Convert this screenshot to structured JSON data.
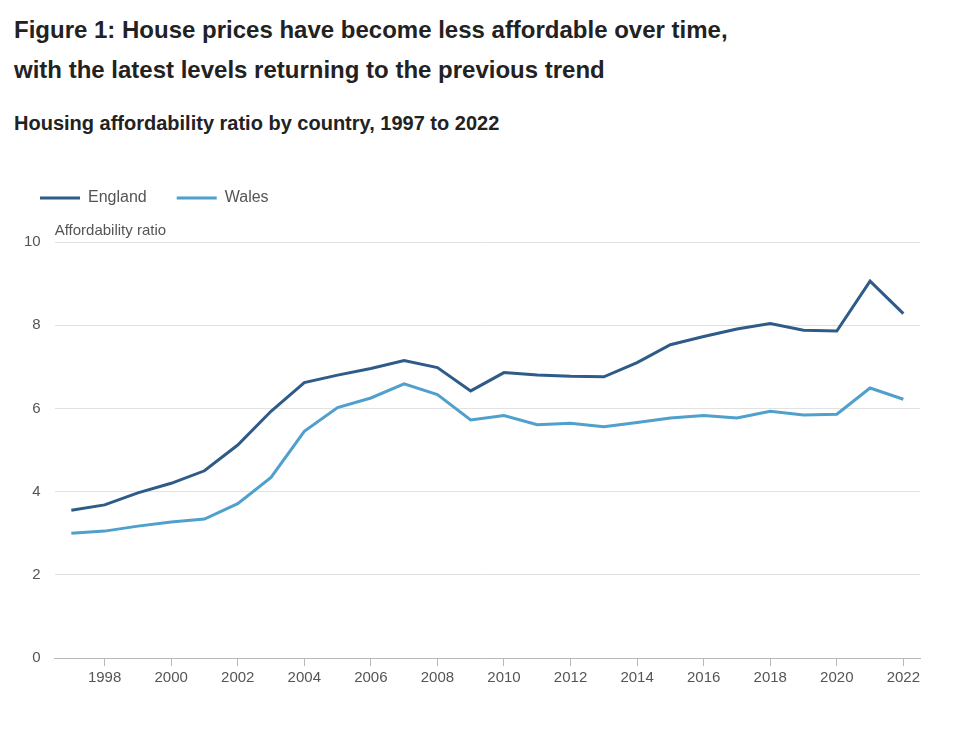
{
  "chart_data": {
    "type": "line",
    "title": [
      "Figure 1: House prices have become less affordable over time,",
      "with the latest levels returning to the previous trend"
    ],
    "subtitle": "Housing affordability ratio by country, 1997 to 2022",
    "y_label": "Affordability ratio",
    "x": [
      1997,
      1998,
      1999,
      2000,
      2001,
      2002,
      2003,
      2004,
      2005,
      2006,
      2007,
      2008,
      2009,
      2010,
      2011,
      2012,
      2013,
      2014,
      2015,
      2016,
      2017,
      2018,
      2019,
      2020,
      2021,
      2022
    ],
    "series": [
      {
        "name": "England",
        "color": "#2e5b87",
        "values": [
          3.55,
          3.68,
          3.97,
          4.2,
          4.5,
          5.12,
          5.93,
          6.62,
          6.8,
          6.96,
          7.15,
          6.98,
          6.42,
          6.86,
          6.8,
          6.77,
          6.76,
          7.1,
          7.53,
          7.73,
          7.91,
          8.04,
          7.88,
          7.86,
          9.06,
          8.28
        ]
      },
      {
        "name": "Wales",
        "color": "#4fa0cc",
        "values": [
          3.0,
          3.05,
          3.17,
          3.27,
          3.34,
          3.71,
          4.34,
          5.45,
          6.02,
          6.25,
          6.59,
          6.33,
          5.72,
          5.83,
          5.61,
          5.64,
          5.56,
          5.66,
          5.77,
          5.83,
          5.77,
          5.93,
          5.84,
          5.86,
          6.49,
          6.22
        ]
      }
    ],
    "xlim": [
      1996.5,
      2022.5
    ],
    "xticks": [
      1998,
      2000,
      2002,
      2004,
      2006,
      2008,
      2010,
      2012,
      2014,
      2016,
      2018,
      2020,
      2022
    ],
    "ylim": [
      0,
      10
    ],
    "yticks": [
      0,
      2,
      4,
      6,
      8,
      10
    ],
    "grid": "y",
    "legend": "top-left"
  }
}
